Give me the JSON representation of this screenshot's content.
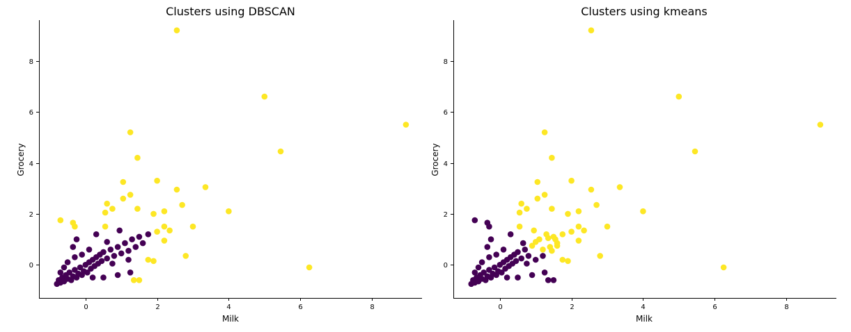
{
  "colors": {
    "cluster_0": "#440154",
    "cluster_1": "#fde725"
  },
  "chart_data": [
    {
      "type": "scatter",
      "title": "Clusters using DBSCAN",
      "xlabel": "Milk",
      "ylabel": "Grocery",
      "xlim": [
        -1.3,
        9.4
      ],
      "ylim": [
        -1.3,
        9.6
      ],
      "xticks": [
        0,
        2,
        4,
        6,
        8
      ],
      "yticks": [
        0,
        2,
        4,
        6,
        8
      ],
      "grid": false,
      "legend": "none",
      "cluster_colors": [
        "#440154",
        "#fde725"
      ],
      "points": [
        {
          "x": -0.8,
          "y": -0.75,
          "c": 0
        },
        {
          "x": -0.75,
          "y": -0.6,
          "c": 0
        },
        {
          "x": -0.7,
          "y": -0.7,
          "c": 0
        },
        {
          "x": -0.65,
          "y": -0.5,
          "c": 0
        },
        {
          "x": -0.6,
          "y": -0.65,
          "c": 0
        },
        {
          "x": -0.55,
          "y": -0.4,
          "c": 0
        },
        {
          "x": -0.5,
          "y": -0.55,
          "c": 0
        },
        {
          "x": -0.45,
          "y": -0.3,
          "c": 0
        },
        {
          "x": -0.4,
          "y": -0.6,
          "c": 0
        },
        {
          "x": -0.35,
          "y": -0.45,
          "c": 0
        },
        {
          "x": -0.3,
          "y": -0.2,
          "c": 0
        },
        {
          "x": -0.25,
          "y": -0.5,
          "c": 0
        },
        {
          "x": -0.2,
          "y": -0.35,
          "c": 0
        },
        {
          "x": -0.15,
          "y": -0.1,
          "c": 0
        },
        {
          "x": -0.1,
          "y": -0.4,
          "c": 0
        },
        {
          "x": -0.05,
          "y": -0.25,
          "c": 0
        },
        {
          "x": 0.0,
          "y": 0.0,
          "c": 0
        },
        {
          "x": 0.05,
          "y": -0.3,
          "c": 0
        },
        {
          "x": 0.1,
          "y": 0.1,
          "c": 0
        },
        {
          "x": 0.15,
          "y": -0.15,
          "c": 0
        },
        {
          "x": 0.2,
          "y": 0.2,
          "c": 0
        },
        {
          "x": 0.25,
          "y": -0.05,
          "c": 0
        },
        {
          "x": 0.3,
          "y": 0.3,
          "c": 0
        },
        {
          "x": 0.35,
          "y": 0.05,
          "c": 0
        },
        {
          "x": 0.4,
          "y": 0.4,
          "c": 0
        },
        {
          "x": 0.45,
          "y": 0.15,
          "c": 0
        },
        {
          "x": 0.5,
          "y": 0.5,
          "c": 0
        },
        {
          "x": 0.6,
          "y": 0.25,
          "c": 0
        },
        {
          "x": 0.7,
          "y": 0.6,
          "c": 0
        },
        {
          "x": 0.8,
          "y": 0.35,
          "c": 0
        },
        {
          "x": 0.9,
          "y": 0.7,
          "c": 0
        },
        {
          "x": 1.0,
          "y": 0.45,
          "c": 0
        },
        {
          "x": 1.1,
          "y": 0.85,
          "c": 0
        },
        {
          "x": 1.2,
          "y": 0.55,
          "c": 0
        },
        {
          "x": 1.3,
          "y": 1.0,
          "c": 0
        },
        {
          "x": 1.4,
          "y": 0.7,
          "c": 0
        },
        {
          "x": 1.5,
          "y": 1.1,
          "c": 0
        },
        {
          "x": 1.6,
          "y": 0.85,
          "c": 0
        },
        {
          "x": 1.75,
          "y": 1.2,
          "c": 0
        },
        {
          "x": 0.95,
          "y": 1.35,
          "c": 0
        },
        {
          "x": -0.35,
          "y": 0.7,
          "c": 0
        },
        {
          "x": -0.25,
          "y": 1.0,
          "c": 0
        },
        {
          "x": 0.3,
          "y": 1.2,
          "c": 0
        },
        {
          "x": 1.25,
          "y": -0.3,
          "c": 0
        },
        {
          "x": 0.9,
          "y": -0.4,
          "c": 0
        },
        {
          "x": 0.5,
          "y": -0.5,
          "c": 0
        },
        {
          "x": -0.7,
          "y": -0.3,
          "c": 0
        },
        {
          "x": -0.5,
          "y": 0.1,
          "c": 0
        },
        {
          "x": -0.3,
          "y": 0.3,
          "c": 0
        },
        {
          "x": 0.1,
          "y": 0.6,
          "c": 0
        },
        {
          "x": 0.6,
          "y": 0.9,
          "c": 0
        },
        {
          "x": 1.2,
          "y": 0.2,
          "c": 0
        },
        {
          "x": -0.6,
          "y": -0.1,
          "c": 0
        },
        {
          "x": -0.1,
          "y": 0.4,
          "c": 0
        },
        {
          "x": 0.2,
          "y": -0.5,
          "c": 0
        },
        {
          "x": 0.75,
          "y": 0.05,
          "c": 0
        },
        {
          "x": 2.55,
          "y": 9.2,
          "c": 1
        },
        {
          "x": 5.0,
          "y": 6.6,
          "c": 1
        },
        {
          "x": 8.95,
          "y": 5.5,
          "c": 1
        },
        {
          "x": 5.45,
          "y": 4.45,
          "c": 1
        },
        {
          "x": 1.25,
          "y": 5.2,
          "c": 1
        },
        {
          "x": 1.45,
          "y": 4.2,
          "c": 1
        },
        {
          "x": 1.05,
          "y": 3.25,
          "c": 1
        },
        {
          "x": 2.0,
          "y": 3.3,
          "c": 1
        },
        {
          "x": 3.35,
          "y": 3.05,
          "c": 1
        },
        {
          "x": 2.55,
          "y": 2.95,
          "c": 1
        },
        {
          "x": 1.25,
          "y": 2.75,
          "c": 1
        },
        {
          "x": 1.05,
          "y": 2.6,
          "c": 1
        },
        {
          "x": 0.6,
          "y": 2.4,
          "c": 1
        },
        {
          "x": 0.55,
          "y": 2.05,
          "c": 1
        },
        {
          "x": 0.75,
          "y": 2.2,
          "c": 1
        },
        {
          "x": 1.45,
          "y": 2.2,
          "c": 1
        },
        {
          "x": 2.7,
          "y": 2.35,
          "c": 1
        },
        {
          "x": 2.2,
          "y": 2.1,
          "c": 1
        },
        {
          "x": 1.9,
          "y": 2.0,
          "c": 1
        },
        {
          "x": 4.0,
          "y": 2.1,
          "c": 1
        },
        {
          "x": 3.0,
          "y": 1.5,
          "c": 1
        },
        {
          "x": 2.2,
          "y": 1.5,
          "c": 1
        },
        {
          "x": 2.35,
          "y": 1.35,
          "c": 1
        },
        {
          "x": 2.0,
          "y": 1.3,
          "c": 1
        },
        {
          "x": 2.2,
          "y": 0.95,
          "c": 1
        },
        {
          "x": 0.55,
          "y": 1.5,
          "c": 1
        },
        {
          "x": -0.7,
          "y": 1.75,
          "c": 1
        },
        {
          "x": -0.35,
          "y": 1.65,
          "c": 1
        },
        {
          "x": -0.3,
          "y": 1.5,
          "c": 1
        },
        {
          "x": 2.8,
          "y": 0.35,
          "c": 1
        },
        {
          "x": 1.75,
          "y": 0.2,
          "c": 1
        },
        {
          "x": 1.9,
          "y": 0.15,
          "c": 1
        },
        {
          "x": 1.35,
          "y": -0.6,
          "c": 1
        },
        {
          "x": 1.5,
          "y": -0.6,
          "c": 1
        },
        {
          "x": 6.25,
          "y": -0.1,
          "c": 1
        }
      ]
    },
    {
      "type": "scatter",
      "title": "Clusters using kmeans",
      "xlabel": "Milk",
      "ylabel": "Grocery",
      "xlim": [
        -1.3,
        9.4
      ],
      "ylim": [
        -1.3,
        9.6
      ],
      "xticks": [
        0,
        2,
        4,
        6,
        8
      ],
      "yticks": [
        0,
        2,
        4,
        6,
        8
      ],
      "grid": false,
      "legend": "none",
      "cluster_colors": [
        "#440154",
        "#fde725"
      ],
      "points": [
        {
          "x": -0.8,
          "y": -0.75,
          "c": 0
        },
        {
          "x": -0.75,
          "y": -0.6,
          "c": 0
        },
        {
          "x": -0.7,
          "y": -0.7,
          "c": 0
        },
        {
          "x": -0.65,
          "y": -0.5,
          "c": 0
        },
        {
          "x": -0.6,
          "y": -0.65,
          "c": 0
        },
        {
          "x": -0.55,
          "y": -0.4,
          "c": 0
        },
        {
          "x": -0.5,
          "y": -0.55,
          "c": 0
        },
        {
          "x": -0.45,
          "y": -0.3,
          "c": 0
        },
        {
          "x": -0.4,
          "y": -0.6,
          "c": 0
        },
        {
          "x": -0.35,
          "y": -0.45,
          "c": 0
        },
        {
          "x": -0.3,
          "y": -0.2,
          "c": 0
        },
        {
          "x": -0.25,
          "y": -0.5,
          "c": 0
        },
        {
          "x": -0.2,
          "y": -0.35,
          "c": 0
        },
        {
          "x": -0.15,
          "y": -0.1,
          "c": 0
        },
        {
          "x": -0.1,
          "y": -0.4,
          "c": 0
        },
        {
          "x": -0.05,
          "y": -0.25,
          "c": 0
        },
        {
          "x": 0.0,
          "y": 0.0,
          "c": 0
        },
        {
          "x": 0.05,
          "y": -0.3,
          "c": 0
        },
        {
          "x": 0.1,
          "y": 0.1,
          "c": 0
        },
        {
          "x": 0.15,
          "y": -0.15,
          "c": 0
        },
        {
          "x": 0.2,
          "y": 0.2,
          "c": 0
        },
        {
          "x": 0.25,
          "y": -0.05,
          "c": 0
        },
        {
          "x": 0.3,
          "y": 0.3,
          "c": 0
        },
        {
          "x": 0.35,
          "y": 0.05,
          "c": 0
        },
        {
          "x": 0.4,
          "y": 0.4,
          "c": 0
        },
        {
          "x": 0.45,
          "y": 0.15,
          "c": 0
        },
        {
          "x": 0.5,
          "y": 0.5,
          "c": 0
        },
        {
          "x": 0.6,
          "y": 0.25,
          "c": 0
        },
        {
          "x": 0.7,
          "y": 0.6,
          "c": 0
        },
        {
          "x": 0.8,
          "y": 0.35,
          "c": 0
        },
        {
          "x": -0.35,
          "y": 0.7,
          "c": 0
        },
        {
          "x": -0.25,
          "y": 1.0,
          "c": 0
        },
        {
          "x": 0.3,
          "y": 1.2,
          "c": 0
        },
        {
          "x": -0.7,
          "y": 1.75,
          "c": 0
        },
        {
          "x": -0.35,
          "y": 1.65,
          "c": 0
        },
        {
          "x": -0.3,
          "y": 1.5,
          "c": 0
        },
        {
          "x": 1.25,
          "y": -0.3,
          "c": 0
        },
        {
          "x": 0.9,
          "y": -0.4,
          "c": 0
        },
        {
          "x": 0.5,
          "y": -0.5,
          "c": 0
        },
        {
          "x": -0.7,
          "y": -0.3,
          "c": 0
        },
        {
          "x": -0.5,
          "y": 0.1,
          "c": 0
        },
        {
          "x": -0.3,
          "y": 0.3,
          "c": 0
        },
        {
          "x": 0.1,
          "y": 0.6,
          "c": 0
        },
        {
          "x": 1.0,
          "y": 0.2,
          "c": 0
        },
        {
          "x": -0.6,
          "y": -0.1,
          "c": 0
        },
        {
          "x": -0.1,
          "y": 0.4,
          "c": 0
        },
        {
          "x": 0.2,
          "y": -0.5,
          "c": 0
        },
        {
          "x": 0.75,
          "y": 0.05,
          "c": 0
        },
        {
          "x": 1.35,
          "y": -0.6,
          "c": 0
        },
        {
          "x": 1.5,
          "y": -0.6,
          "c": 0
        },
        {
          "x": 1.2,
          "y": 0.35,
          "c": 0
        },
        {
          "x": 0.65,
          "y": 0.85,
          "c": 0
        },
        {
          "x": 2.55,
          "y": 9.2,
          "c": 1
        },
        {
          "x": 5.0,
          "y": 6.6,
          "c": 1
        },
        {
          "x": 8.95,
          "y": 5.5,
          "c": 1
        },
        {
          "x": 5.45,
          "y": 4.45,
          "c": 1
        },
        {
          "x": 1.25,
          "y": 5.2,
          "c": 1
        },
        {
          "x": 1.45,
          "y": 4.2,
          "c": 1
        },
        {
          "x": 1.05,
          "y": 3.25,
          "c": 1
        },
        {
          "x": 2.0,
          "y": 3.3,
          "c": 1
        },
        {
          "x": 3.35,
          "y": 3.05,
          "c": 1
        },
        {
          "x": 2.55,
          "y": 2.95,
          "c": 1
        },
        {
          "x": 1.25,
          "y": 2.75,
          "c": 1
        },
        {
          "x": 1.05,
          "y": 2.6,
          "c": 1
        },
        {
          "x": 0.6,
          "y": 2.4,
          "c": 1
        },
        {
          "x": 0.55,
          "y": 2.05,
          "c": 1
        },
        {
          "x": 0.75,
          "y": 2.2,
          "c": 1
        },
        {
          "x": 1.45,
          "y": 2.2,
          "c": 1
        },
        {
          "x": 2.7,
          "y": 2.35,
          "c": 1
        },
        {
          "x": 2.2,
          "y": 2.1,
          "c": 1
        },
        {
          "x": 1.9,
          "y": 2.0,
          "c": 1
        },
        {
          "x": 4.0,
          "y": 2.1,
          "c": 1
        },
        {
          "x": 3.0,
          "y": 1.5,
          "c": 1
        },
        {
          "x": 2.2,
          "y": 1.5,
          "c": 1
        },
        {
          "x": 2.35,
          "y": 1.35,
          "c": 1
        },
        {
          "x": 2.0,
          "y": 1.3,
          "c": 1
        },
        {
          "x": 2.2,
          "y": 0.95,
          "c": 1
        },
        {
          "x": 0.55,
          "y": 1.5,
          "c": 1
        },
        {
          "x": 2.8,
          "y": 0.35,
          "c": 1
        },
        {
          "x": 1.75,
          "y": 0.2,
          "c": 1
        },
        {
          "x": 1.9,
          "y": 0.15,
          "c": 1
        },
        {
          "x": 6.25,
          "y": -0.1,
          "c": 1
        },
        {
          "x": 1.1,
          "y": 1.0,
          "c": 1
        },
        {
          "x": 1.3,
          "y": 1.2,
          "c": 1
        },
        {
          "x": 1.5,
          "y": 1.1,
          "c": 1
        },
        {
          "x": 1.6,
          "y": 0.85,
          "c": 1
        },
        {
          "x": 1.75,
          "y": 1.2,
          "c": 1
        },
        {
          "x": 0.95,
          "y": 1.35,
          "c": 1
        },
        {
          "x": 1.4,
          "y": 0.7,
          "c": 1
        },
        {
          "x": 1.2,
          "y": 0.6,
          "c": 1
        },
        {
          "x": 1.45,
          "y": 0.55,
          "c": 1
        },
        {
          "x": 1.6,
          "y": 0.75,
          "c": 1
        },
        {
          "x": 1.35,
          "y": 1.05,
          "c": 1
        },
        {
          "x": 1.0,
          "y": 0.9,
          "c": 1
        },
        {
          "x": 1.55,
          "y": 1.0,
          "c": 1
        },
        {
          "x": 0.9,
          "y": 0.75,
          "c": 1
        }
      ]
    }
  ]
}
